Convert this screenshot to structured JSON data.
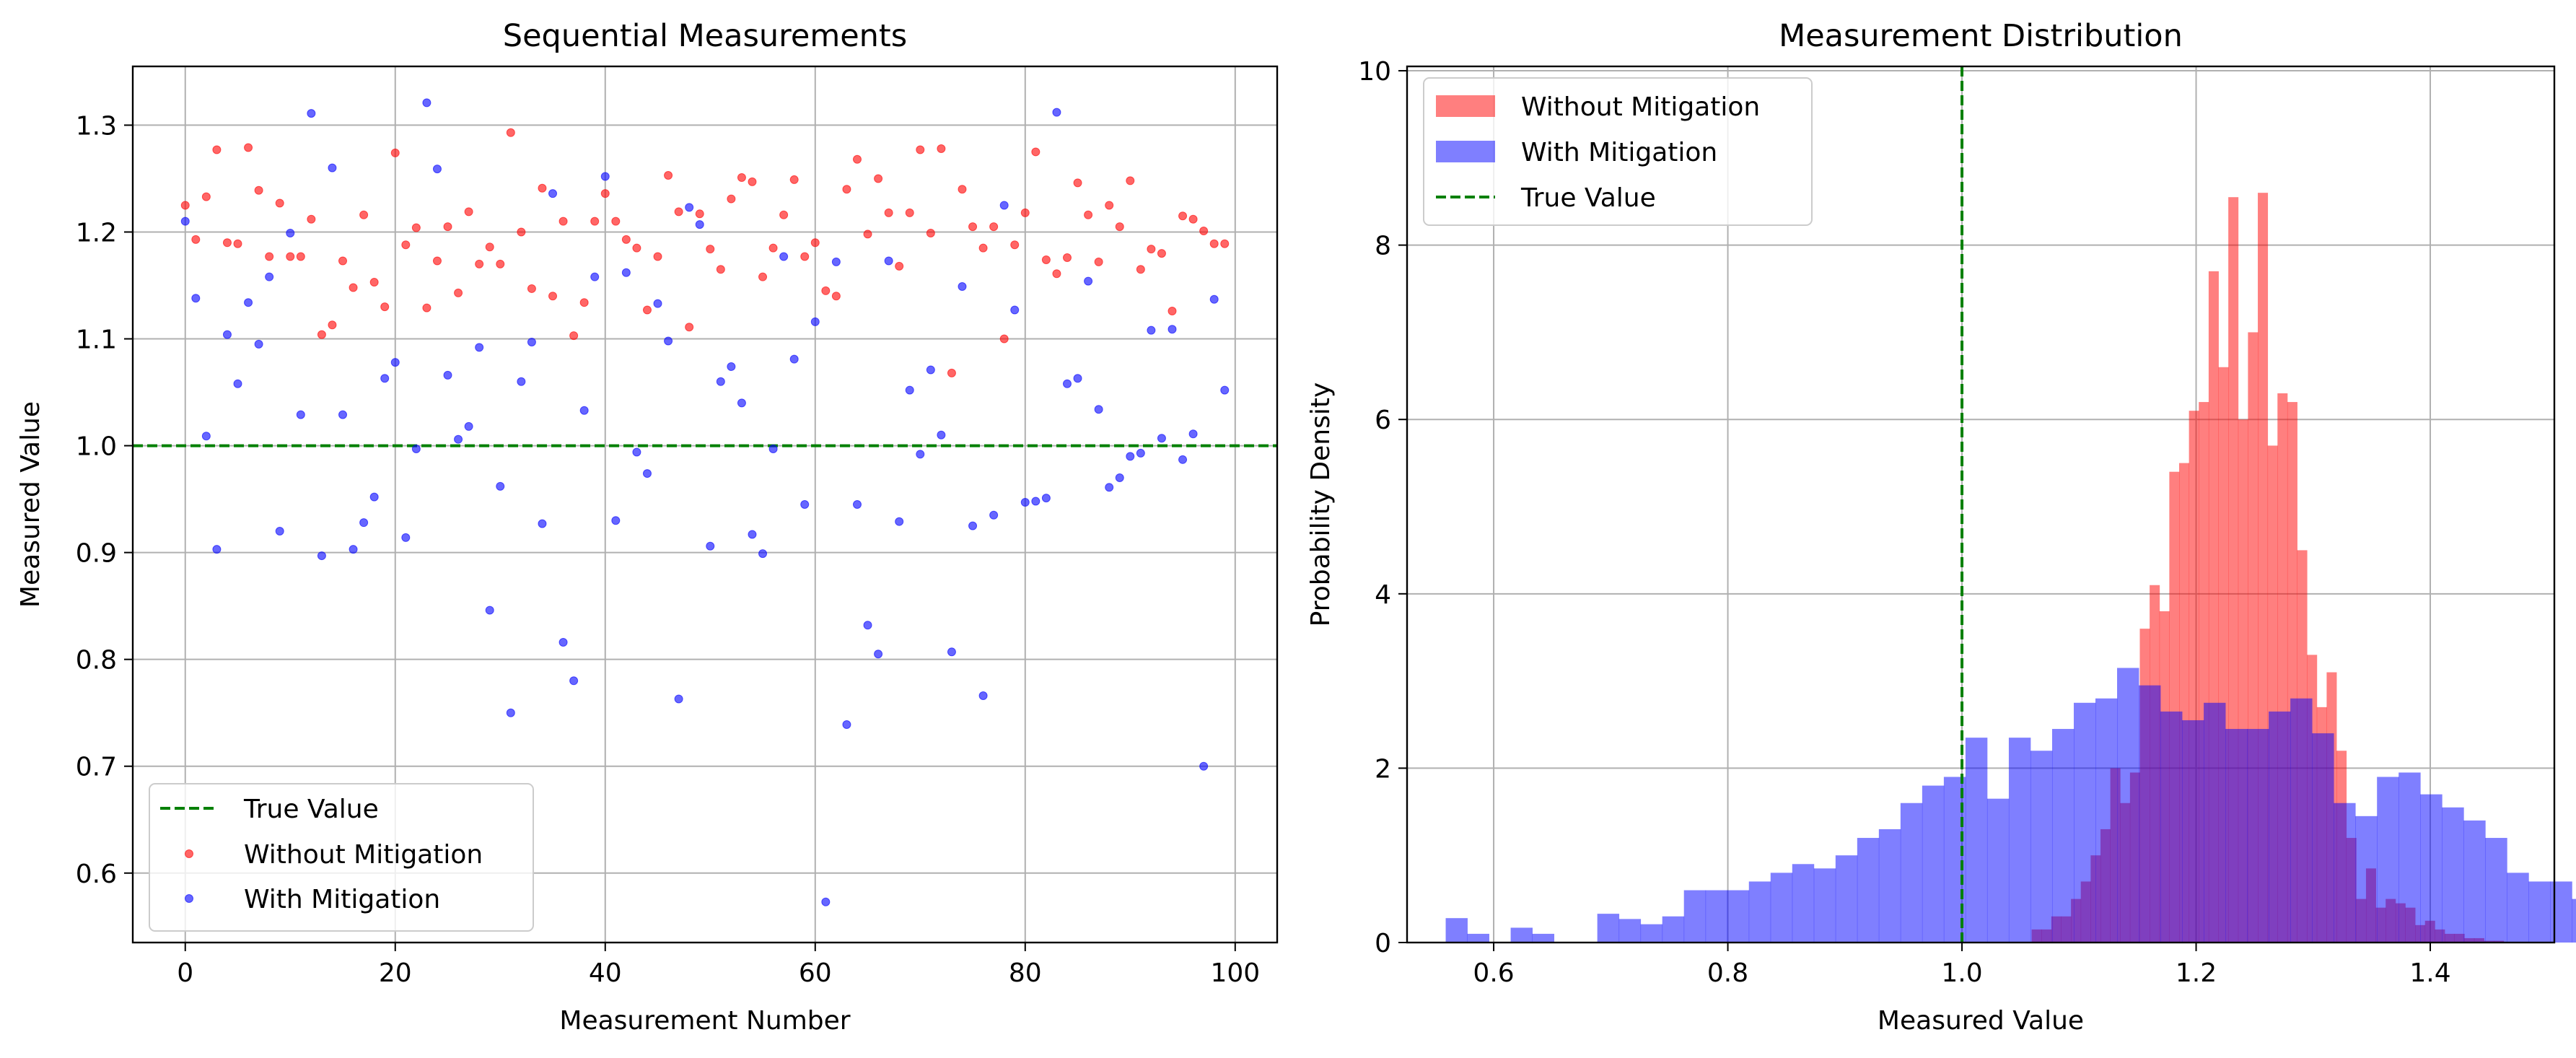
{
  "chart_data": [
    {
      "type": "scatter",
      "title": "Sequential Measurements",
      "xlabel": "Measurement Number",
      "ylabel": "Measured Value",
      "xlim": [
        -5,
        104
      ],
      "ylim": [
        0.535,
        1.355
      ],
      "xticks": [
        0,
        20,
        40,
        60,
        80,
        100
      ],
      "yticks": [
        0.6,
        0.7,
        0.8,
        0.9,
        1.0,
        1.1,
        1.2,
        1.3
      ],
      "grid": true,
      "legend_placement": "lower-left",
      "reference_line": {
        "name": "True Value",
        "y": 1.0,
        "color": "#008000",
        "style": "dashed"
      },
      "series": [
        {
          "name": "Without Mitigation",
          "color": "#ff0000",
          "x": [
            0,
            1,
            2,
            3,
            4,
            5,
            6,
            7,
            8,
            9,
            10,
            11,
            12,
            13,
            14,
            15,
            16,
            17,
            18,
            19,
            20,
            21,
            22,
            23,
            24,
            25,
            26,
            27,
            28,
            29,
            30,
            31,
            32,
            33,
            34,
            35,
            36,
            37,
            38,
            39,
            40,
            41,
            42,
            43,
            44,
            45,
            46,
            47,
            48,
            49,
            50,
            51,
            52,
            53,
            54,
            55,
            56,
            57,
            58,
            59,
            60,
            61,
            62,
            63,
            64,
            65,
            66,
            67,
            68,
            69,
            70,
            71,
            72,
            73,
            74,
            75,
            76,
            77,
            78,
            79,
            80,
            81,
            82,
            83,
            84,
            85,
            86,
            87,
            88,
            89,
            90,
            91,
            92,
            93,
            94,
            95,
            96,
            97,
            98,
            99
          ],
          "y": [
            1.225,
            1.193,
            1.233,
            1.277,
            1.19,
            1.189,
            1.279,
            1.239,
            1.177,
            1.227,
            1.177,
            1.177,
            1.212,
            1.104,
            1.113,
            1.173,
            1.148,
            1.216,
            1.153,
            1.13,
            1.274,
            1.188,
            1.204,
            1.129,
            1.173,
            1.205,
            1.143,
            1.219,
            1.17,
            1.186,
            1.17,
            1.293,
            1.2,
            1.147,
            1.241,
            1.14,
            1.21,
            1.103,
            1.134,
            1.21,
            1.236,
            1.21,
            1.193,
            1.185,
            1.127,
            1.177,
            1.253,
            1.219,
            1.111,
            1.217,
            1.184,
            1.165,
            1.231,
            1.251,
            1.247,
            1.158,
            1.185,
            1.216,
            1.249,
            1.177,
            1.19,
            1.145,
            1.14,
            1.24,
            1.268,
            1.198,
            1.25,
            1.218,
            1.168,
            1.218,
            1.277,
            1.199,
            1.278,
            1.068,
            1.24,
            1.205,
            1.185,
            1.205,
            1.1,
            1.188,
            1.218,
            1.275,
            1.174,
            1.161,
            1.176,
            1.246,
            1.216,
            1.172,
            1.225,
            1.205,
            1.248,
            1.165,
            1.184,
            1.18,
            1.126,
            1.215,
            1.212,
            1.201,
            1.189,
            1.189
          ]
        },
        {
          "name": "With Mitigation",
          "color": "#0000ff",
          "x": [
            0,
            1,
            2,
            3,
            4,
            5,
            6,
            7,
            8,
            9,
            10,
            11,
            12,
            13,
            14,
            15,
            16,
            17,
            18,
            19,
            20,
            21,
            22,
            23,
            24,
            25,
            26,
            27,
            28,
            29,
            30,
            31,
            32,
            33,
            34,
            35,
            36,
            37,
            38,
            39,
            40,
            41,
            42,
            43,
            44,
            45,
            46,
            47,
            48,
            49,
            50,
            51,
            52,
            53,
            54,
            55,
            56,
            57,
            58,
            59,
            60,
            61,
            62,
            63,
            64,
            65,
            66,
            67,
            68,
            69,
            70,
            71,
            72,
            73,
            74,
            75,
            76,
            77,
            78,
            79,
            80,
            81,
            82,
            83,
            84,
            85,
            86,
            87,
            88,
            89,
            90,
            91,
            92,
            93,
            94,
            95,
            96,
            97,
            98,
            99
          ],
          "y": [
            1.21,
            1.138,
            1.009,
            0.903,
            1.104,
            1.058,
            1.134,
            1.095,
            1.158,
            0.92,
            1.199,
            1.029,
            1.311,
            0.897,
            1.26,
            1.029,
            0.903,
            0.928,
            0.952,
            1.063,
            1.078,
            0.914,
            0.997,
            1.321,
            1.259,
            1.066,
            1.006,
            1.018,
            1.092,
            0.846,
            0.962,
            0.75,
            1.06,
            1.097,
            0.927,
            1.236,
            0.816,
            0.78,
            1.033,
            1.158,
            1.252,
            0.93,
            1.162,
            0.994,
            0.974,
            1.133,
            1.098,
            0.763,
            1.223,
            1.207,
            0.906,
            1.06,
            1.074,
            1.04,
            0.917,
            0.899,
            0.997,
            1.177,
            1.081,
            0.945,
            1.116,
            0.573,
            1.172,
            0.739,
            0.945,
            0.832,
            0.805,
            1.173,
            0.929,
            1.052,
            0.992,
            1.071,
            1.01,
            0.807,
            1.149,
            0.925,
            0.766,
            0.935,
            1.225,
            1.127,
            0.947,
            0.948,
            0.951,
            1.312,
            1.058,
            1.063,
            1.154,
            1.034,
            0.961,
            0.97,
            0.99,
            0.993,
            1.108,
            1.007,
            1.109,
            0.987,
            1.011,
            0.7,
            1.137,
            1.052
          ]
        }
      ]
    },
    {
      "type": "histogram",
      "title": "Measurement Distribution",
      "xlabel": "Measured Value",
      "ylabel": "Probability Density",
      "xlim": [
        0.526,
        1.506
      ],
      "ylim": [
        0,
        10.05
      ],
      "xticks": [
        0.6,
        0.8,
        1.0,
        1.2,
        1.4
      ],
      "yticks": [
        0,
        2,
        4,
        6,
        8,
        10
      ],
      "grid": true,
      "legend_placement": "top-left",
      "reference_line": {
        "name": "True Value",
        "x": 1.0,
        "color": "#008000",
        "style": "dashed"
      },
      "series": [
        {
          "name": "Without Mitigation",
          "color": "#ff0000",
          "opacity": 0.5,
          "bin_start": 1.0595,
          "bin_width": 0.0084,
          "density": [
            0.15,
            0.15,
            0.3,
            0.3,
            0.5,
            0.7,
            1.0,
            1.3,
            2.0,
            1.6,
            1.95,
            3.6,
            4.1,
            3.8,
            5.4,
            5.5,
            6.1,
            6.2,
            7.7,
            6.6,
            8.55,
            6.0,
            7.0,
            8.6,
            5.7,
            6.3,
            6.2,
            4.5,
            3.3,
            2.7,
            3.1,
            2.2,
            1.2,
            0.5,
            0.85,
            0.4,
            0.5,
            0.45,
            0.4,
            0.2,
            0.25,
            0.15,
            0.1,
            0.1,
            0.05,
            0.05,
            0.02,
            0.02
          ]
        },
        {
          "name": "With Mitigation",
          "color": "#0000ff",
          "opacity": 0.5,
          "bin_start": 0.559,
          "bin_width": 0.0185,
          "density": [
            0.28,
            0.1,
            0.0,
            0.17,
            0.1,
            0.0,
            0.0,
            0.33,
            0.27,
            0.21,
            0.3,
            0.6,
            0.6,
            0.6,
            0.7,
            0.8,
            0.9,
            0.85,
            1.0,
            1.2,
            1.3,
            1.6,
            1.8,
            1.9,
            2.35,
            1.65,
            2.35,
            2.2,
            2.45,
            2.75,
            2.8,
            3.15,
            2.95,
            2.65,
            2.55,
            2.75,
            2.45,
            2.45,
            2.65,
            2.8,
            2.4,
            1.6,
            1.45,
            1.9,
            1.95,
            1.7,
            1.55,
            1.4,
            1.2,
            0.8,
            0.7,
            0.7,
            0.5,
            0.4,
            0.3,
            0.2,
            0.15,
            0.1,
            0.1,
            0.1,
            0.15,
            0.1,
            0.0,
            0.0,
            0.0,
            0.0,
            0.0,
            0.0,
            0.0,
            0.0,
            0.1
          ]
        }
      ]
    }
  ]
}
